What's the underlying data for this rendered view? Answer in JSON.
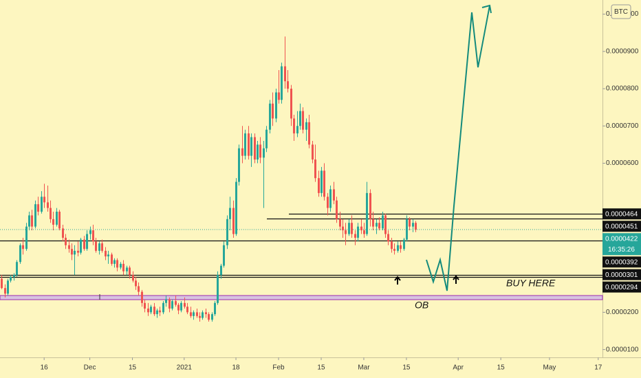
{
  "chart_data": {
    "type": "candlestick",
    "symbol_badge": "BTC",
    "up_color": "#26a69a",
    "down_color": "#ef5350",
    "grid": false,
    "xlim": [
      -0.5,
      197.4
    ],
    "xticks": [
      {
        "value": 14,
        "label": "16"
      },
      {
        "value": 29,
        "label": "Dec"
      },
      {
        "value": 43,
        "label": "15"
      },
      {
        "value": 60,
        "label": "2021"
      },
      {
        "value": 77,
        "label": "18"
      },
      {
        "value": 91,
        "label": "Feb"
      },
      {
        "value": 105,
        "label": "15"
      },
      {
        "value": 119,
        "label": "Mar"
      },
      {
        "value": 133,
        "label": "15"
      },
      {
        "value": 150,
        "label": "Apr"
      },
      {
        "value": 164,
        "label": "15"
      },
      {
        "value": 180,
        "label": "May"
      },
      {
        "value": 196,
        "label": "17"
      }
    ],
    "ylim": [
      7.9e-06,
      0.0001038
    ],
    "yticks": [
      {
        "value": 1e-05,
        "label": "0.0000100"
      },
      {
        "value": 2e-05,
        "label": "0.0000200"
      },
      {
        "value": 6e-05,
        "label": "0.0000600"
      },
      {
        "value": 7e-05,
        "label": "0.0000700"
      },
      {
        "value": 8e-05,
        "label": "0.0000800"
      },
      {
        "value": 9e-05,
        "label": "0.0000900"
      },
      {
        "value": 0.0001,
        "label": "0.0001000"
      }
    ],
    "price_lines": [
      {
        "value": 4.64e-05,
        "label": "0.0000464"
      },
      {
        "value": 4.51e-05,
        "label": "0.0000451"
      },
      {
        "value": 3.92e-05,
        "label": "0.0000392"
      },
      {
        "value": 3.01e-05,
        "label": "0.0000301"
      },
      {
        "value": 2.94e-05,
        "label": "0.0000294"
      }
    ],
    "last_price": {
      "value": 4.22e-05,
      "label": "0.0000422",
      "countdown": "16:35:26"
    },
    "annotations": [
      "BUY HERE",
      "OB"
    ],
    "ohlc": [
      [
        2.9e-05,
        3e-05,
        2.62e-05,
        2.65e-05
      ],
      [
        2.65e-05,
        2.75e-05,
        2.4e-05,
        2.5e-05
      ],
      [
        2.5e-05,
        2.9e-05,
        2.45e-05,
        2.85e-05
      ],
      [
        2.85e-05,
        3e-05,
        2.8e-05,
        2.95e-05
      ],
      [
        2.95e-05,
        3.05e-05,
        2.85e-05,
        3e-05
      ],
      [
        3e-05,
        3.4e-05,
        2.95e-05,
        3.35e-05
      ],
      [
        3.35e-05,
        3.85e-05,
        3.3e-05,
        3.8e-05
      ],
      [
        3.8e-05,
        4e-05,
        3.55e-05,
        3.7e-05
      ],
      [
        3.7e-05,
        4.4e-05,
        3.65e-05,
        4.3e-05
      ],
      [
        4.3e-05,
        4.7e-05,
        4.2e-05,
        4.6e-05
      ],
      [
        4.6e-05,
        4.75e-05,
        4.2e-05,
        4.3e-05
      ],
      [
        4.3e-05,
        5e-05,
        4.25e-05,
        4.9e-05
      ],
      [
        4.9e-05,
        5.1e-05,
        4.6e-05,
        4.7e-05
      ],
      [
        4.7e-05,
        5.25e-05,
        4.65e-05,
        5.1e-05
      ],
      [
        5.1e-05,
        5.45e-05,
        4.8e-05,
        4.95e-05
      ],
      [
        4.95e-05,
        5.4e-05,
        4.7e-05,
        4.8e-05
      ],
      [
        4.8e-05,
        5e-05,
        4.4e-05,
        4.5e-05
      ],
      [
        4.5e-05,
        4.7e-05,
        4.2e-05,
        4.35e-05
      ],
      [
        4.35e-05,
        4.8e-05,
        4.3e-05,
        4.7e-05
      ],
      [
        4.7e-05,
        4.75e-05,
        4.2e-05,
        4.25e-05
      ],
      [
        4.25e-05,
        4.35e-05,
        3.9e-05,
        4e-05
      ],
      [
        4e-05,
        4.1e-05,
        3.7e-05,
        3.8e-05
      ],
      [
        3.8e-05,
        3.95e-05,
        3.6e-05,
        3.7e-05
      ],
      [
        3.7e-05,
        3.85e-05,
        3.4e-05,
        3.55e-05
      ],
      [
        3.55e-05,
        3.8e-05,
        3e-05,
        3.65e-05
      ],
      [
        3.65e-05,
        3.9e-05,
        3.5e-05,
        3.6e-05
      ],
      [
        3.6e-05,
        4e-05,
        3.55e-05,
        3.95e-05
      ],
      [
        3.95e-05,
        4.05e-05,
        3.65e-05,
        3.7e-05
      ],
      [
        3.7e-05,
        4.2e-05,
        3.65e-05,
        4.1e-05
      ],
      [
        4.1e-05,
        4.3e-05,
        3.95e-05,
        4.2e-05
      ],
      [
        4.2e-05,
        4.35e-05,
        3.8e-05,
        3.9e-05
      ],
      [
        3.9e-05,
        4e-05,
        3.6e-05,
        3.65e-05
      ],
      [
        3.65e-05,
        3.9e-05,
        3.55e-05,
        3.85e-05
      ],
      [
        3.85e-05,
        3.95e-05,
        3.6e-05,
        3.65e-05
      ],
      [
        3.65e-05,
        3.75e-05,
        3.4e-05,
        3.5e-05
      ],
      [
        3.5e-05,
        3.65e-05,
        3.3e-05,
        3.55e-05
      ],
      [
        3.55e-05,
        3.6e-05,
        3.25e-05,
        3.3e-05
      ],
      [
        3.3e-05,
        3.45e-05,
        3.2e-05,
        3.4e-05
      ],
      [
        3.4e-05,
        3.45e-05,
        3.1e-05,
        3.2e-05
      ],
      [
        3.2e-05,
        3.35e-05,
        3.15e-05,
        3.3e-05
      ],
      [
        3.3e-05,
        3.4e-05,
        3e-05,
        3.1e-05
      ],
      [
        3.1e-05,
        3.25e-05,
        3e-05,
        3.2e-05
      ],
      [
        3.2e-05,
        3.25e-05,
        2.9e-05,
        3e-05
      ],
      [
        3e-05,
        3.1e-05,
        2.8e-05,
        2.85e-05
      ],
      [
        2.85e-05,
        2.95e-05,
        2.6e-05,
        2.7e-05
      ],
      [
        2.7e-05,
        2.8e-05,
        2.45e-05,
        2.55e-05
      ],
      [
        2.55e-05,
        2.6e-05,
        2.15e-05,
        2.25e-05
      ],
      [
        2.25e-05,
        2.35e-05,
        2e-05,
        2.1e-05
      ],
      [
        2.1e-05,
        2.25e-05,
        1.9e-05,
        2e-05
      ],
      [
        2e-05,
        2.2e-05,
        1.95e-05,
        2.15e-05
      ],
      [
        2.15e-05,
        2.25e-05,
        1.9e-05,
        1.95e-05
      ],
      [
        1.95e-05,
        2.1e-05,
        1.85e-05,
        2.05e-05
      ],
      [
        2.05e-05,
        2.15e-05,
        1.9e-05,
        2e-05
      ],
      [
        2e-05,
        2.3e-05,
        1.95e-05,
        2.25e-05
      ],
      [
        2.25e-05,
        2.45e-05,
        2.15e-05,
        2.35e-05
      ],
      [
        2.35e-05,
        2.4e-05,
        2e-05,
        2.1e-05
      ],
      [
        2.1e-05,
        2.35e-05,
        2.05e-05,
        2.3e-05
      ],
      [
        2.3e-05,
        2.45e-05,
        2.15e-05,
        2.2e-05
      ],
      [
        2.2e-05,
        2.25e-05,
        1.95e-05,
        2.05e-05
      ],
      [
        2.05e-05,
        2.3e-05,
        2e-05,
        2.25e-05
      ],
      [
        2.25e-05,
        2.4e-05,
        2.1e-05,
        2.15e-05
      ],
      [
        2.15e-05,
        2.25e-05,
        1.95e-05,
        2e-05
      ],
      [
        2e-05,
        2.15e-05,
        1.85e-05,
        1.9e-05
      ],
      [
        1.9e-05,
        2.05e-05,
        1.8e-05,
        2e-05
      ],
      [
        2e-05,
        2.1e-05,
        1.85e-05,
        1.9e-05
      ],
      [
        1.9e-05,
        2e-05,
        1.75e-05,
        1.85e-05
      ],
      [
        1.85e-05,
        2.05e-05,
        1.8e-05,
        2e-05
      ],
      [
        2e-05,
        2.1e-05,
        1.85e-05,
        1.95e-05
      ],
      [
        1.95e-05,
        2e-05,
        1.75e-05,
        1.8e-05
      ],
      [
        1.8e-05,
        2e-05,
        1.75e-05,
        1.95e-05
      ],
      [
        1.95e-05,
        2.3e-05,
        1.9e-05,
        2.25e-05
      ],
      [
        2.25e-05,
        3.1e-05,
        2.2e-05,
        3e-05
      ],
      [
        3e-05,
        3.3e-05,
        2.9e-05,
        3.25e-05
      ],
      [
        3.25e-05,
        3.9e-05,
        3.2e-05,
        3.8e-05
      ],
      [
        3.8e-05,
        4.6e-05,
        3.7e-05,
        4.5e-05
      ],
      [
        4.5e-05,
        5.1e-05,
        4.2e-05,
        4.8e-05
      ],
      [
        4.8e-05,
        5e-05,
        4e-05,
        4.1e-05
      ],
      [
        4.1e-05,
        5.6e-05,
        4.05e-05,
        5.5e-05
      ],
      [
        5.5e-05,
        6.5e-05,
        5.4e-05,
        6.4e-05
      ],
      [
        6.4e-05,
        7e-05,
        6e-05,
        6.2e-05
      ],
      [
        6.2e-05,
        6.9e-05,
        6.1e-05,
        6.8e-05
      ],
      [
        6.8e-05,
        7e-05,
        6.1e-05,
        6.2e-05
      ],
      [
        6.2e-05,
        6.8e-05,
        5.9e-05,
        6.7e-05
      ],
      [
        6.7e-05,
        6.8e-05,
        6e-05,
        6.1e-05
      ],
      [
        6.1e-05,
        6.6e-05,
        6e-05,
        6.5e-05
      ],
      [
        6.5e-05,
        6.7e-05,
        6e-05,
        6.15e-05
      ],
      [
        6.15e-05,
        6.6e-05,
        4.8e-05,
        6.4e-05
      ],
      [
        6.4e-05,
        7e-05,
        6.3e-05,
        6.9e-05
      ],
      [
        6.9e-05,
        7.7e-05,
        6.8e-05,
        7.6e-05
      ],
      [
        7.6e-05,
        7.9e-05,
        7e-05,
        7.2e-05
      ],
      [
        7.2e-05,
        8e-05,
        7.1e-05,
        7.9e-05
      ],
      [
        7.9e-05,
        8.5e-05,
        7.6e-05,
        7.7e-05
      ],
      [
        7.7e-05,
        8.7e-05,
        7.6e-05,
        8.6e-05
      ],
      [
        8.6e-05,
        9.4e-05,
        8e-05,
        8.2e-05
      ],
      [
        8.2e-05,
        8.5e-05,
        7.9e-05,
        8e-05
      ],
      [
        8e-05,
        8.1e-05,
        7e-05,
        7.2e-05
      ],
      [
        7.2e-05,
        7.3e-05,
        6.6e-05,
        6.8e-05
      ],
      [
        6.8e-05,
        7.4e-05,
        6.7e-05,
        7e-05
      ],
      [
        7e-05,
        7.6e-05,
        6.9e-05,
        7.4e-05
      ],
      [
        7.4e-05,
        7.5e-05,
        6.8e-05,
        6.9e-05
      ],
      [
        6.9e-05,
        7.2e-05,
        6.6e-05,
        7.1e-05
      ],
      [
        7.1e-05,
        7.3e-05,
        6.4e-05,
        6.5e-05
      ],
      [
        6.5e-05,
        6.6e-05,
        6e-05,
        6.1e-05
      ],
      [
        6.1e-05,
        6.5e-05,
        5.5e-05,
        5.6e-05
      ],
      [
        5.6e-05,
        5.8e-05,
        5.1e-05,
        5.2e-05
      ],
      [
        5.2e-05,
        5.9e-05,
        5.1e-05,
        5.8e-05
      ],
      [
        5.8e-05,
        6e-05,
        5e-05,
        5.1e-05
      ],
      [
        5.1e-05,
        5.2e-05,
        4.6e-05,
        4.8e-05
      ],
      [
        4.8e-05,
        5.4e-05,
        4.7e-05,
        5.3e-05
      ],
      [
        5.3e-05,
        5.5e-05,
        4.9e-05,
        5e-05
      ],
      [
        5e-05,
        5.1e-05,
        4.4e-05,
        4.5e-05
      ],
      [
        4.5e-05,
        4.7e-05,
        4.2e-05,
        4.3e-05
      ],
      [
        4.3e-05,
        4.5e-05,
        4e-05,
        4.2e-05
      ],
      [
        4.2e-05,
        4.4e-05,
        3.8e-05,
        4.1e-05
      ],
      [
        4.1e-05,
        4.5e-05,
        4.05e-05,
        4.4e-05
      ],
      [
        4.4e-05,
        4.6e-05,
        4e-05,
        4.1e-05
      ],
      [
        4.1e-05,
        4.2e-05,
        3.8e-05,
        4e-05
      ],
      [
        4e-05,
        4.4e-05,
        3.9e-05,
        4.3e-05
      ],
      [
        4.3e-05,
        4.5e-05,
        4.1e-05,
        4.2e-05
      ],
      [
        4.2e-05,
        4.4e-05,
        4e-05,
        4.1e-05
      ],
      [
        4.1e-05,
        5.5e-05,
        4.05e-05,
        5.2e-05
      ],
      [
        5.2e-05,
        5.3e-05,
        4.3e-05,
        4.5e-05
      ],
      [
        4.5e-05,
        4.7e-05,
        4.2e-05,
        4.3e-05
      ],
      [
        4.3e-05,
        4.5e-05,
        4.1e-05,
        4.4e-05
      ],
      [
        4.4e-05,
        4.55e-05,
        4.2e-05,
        4.25e-05
      ],
      [
        4.25e-05,
        4.7e-05,
        4.2e-05,
        4.6e-05
      ],
      [
        4.6e-05,
        4.65e-05,
        4e-05,
        4.1e-05
      ],
      [
        4.1e-05,
        4.2e-05,
        3.8e-05,
        3.9e-05
      ],
      [
        3.9e-05,
        4e-05,
        3.6e-05,
        3.7e-05
      ],
      [
        3.7e-05,
        3.85e-05,
        3.55e-05,
        3.65e-05
      ],
      [
        3.65e-05,
        3.9e-05,
        3.6e-05,
        3.8e-05
      ],
      [
        3.8e-05,
        3.9e-05,
        3.6e-05,
        3.7e-05
      ],
      [
        3.7e-05,
        4e-05,
        3.65e-05,
        3.95e-05
      ],
      [
        3.95e-05,
        4.6e-05,
        3.9e-05,
        4.5e-05
      ],
      [
        4.5e-05,
        4.55e-05,
        4.2e-05,
        4.3e-05
      ],
      [
        4.3e-05,
        4.5e-05,
        4.15e-05,
        4.4e-05
      ],
      [
        4.4e-05,
        4.45e-05,
        4.15e-05,
        4.22e-05
      ]
    ]
  }
}
